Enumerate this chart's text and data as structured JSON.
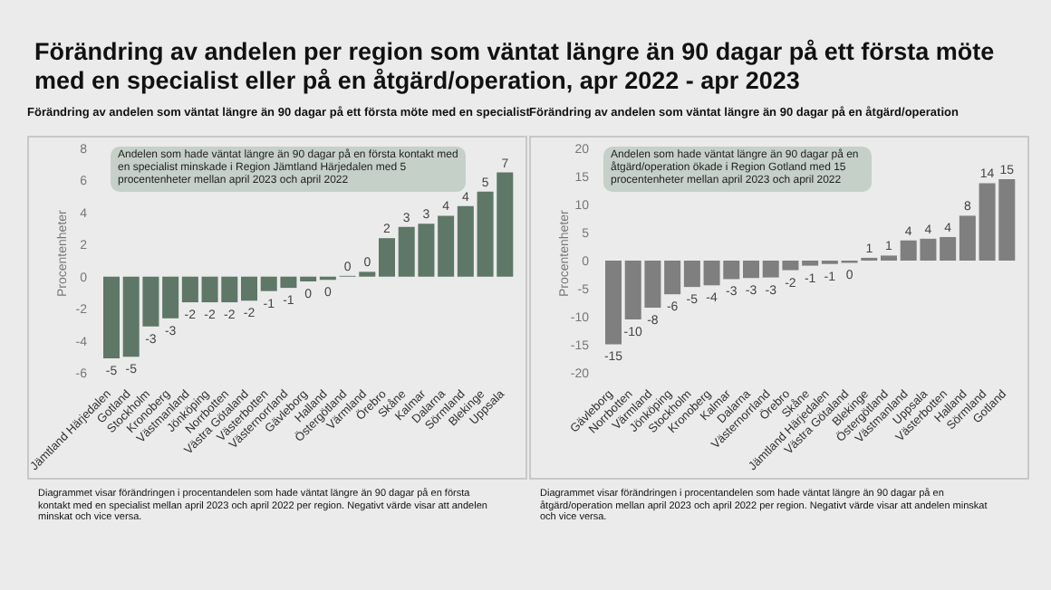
{
  "chart_data": [
    {
      "type": "bar",
      "title": "Förändring av andelen per region som väntat längre än 90 dagar på ett första möte med en specialist eller på en åtgärd/operation, apr 2022 - apr 2023",
      "subtitle": "Förändring av andelen  som väntat längre än 90 dagar på ett första möte med en specialist",
      "ylabel": "Procentenheter",
      "categories": [
        "Jämtland Härjedalen",
        "Gotland",
        "Stockholm",
        "Kronoberg",
        "Västmanland",
        "Jönköping",
        "Norrbotten",
        "Västra Götaland",
        "Västerbotten",
        "Västernorrland",
        "Gävleborg",
        "Halland",
        "Östergötland",
        "Värmland",
        "Örebro",
        "Skåne",
        "Kalmar",
        "Dalarna",
        "Sörmland",
        "Blekinge",
        "Uppsala"
      ],
      "values": [
        -5.1,
        -5.0,
        -3.1,
        -2.6,
        -1.6,
        -1.6,
        -1.6,
        -1.5,
        -0.9,
        -0.7,
        -0.3,
        -0.2,
        0.05,
        0.3,
        2.4,
        3.1,
        3.3,
        3.8,
        4.4,
        5.3,
        6.5
      ],
      "value_labels": [
        "-5",
        "-5",
        "-3",
        "-3",
        "-2",
        "-2",
        "-2",
        "-2",
        "-1",
        "-1",
        "0",
        "0",
        "0",
        "0",
        "2",
        "3",
        "3",
        "4",
        "4",
        "5",
        "7"
      ],
      "color": "#5e7767",
      "ylim": [
        -6,
        8
      ],
      "yticks": [
        -6,
        -4,
        -2,
        0,
        2,
        4,
        6,
        8
      ],
      "grid": false,
      "legend": false,
      "annotations": [
        "Andelen som hade väntat längre än 90 dagar på en första kontakt med en specialist minskade i Region Jämtland Härjedalen med 5 procentenheter mellan april 2023 och april 2022",
        "Diagrammet visar förändringen i procentandelen som hade väntat längre än 90 dagar på en första kontakt med en specialist mellan april 2023 och april 2022 per region. Negativt värde visar att andelen minskat och vice versa."
      ]
    },
    {
      "type": "bar",
      "subtitle": "Förändring av andelen som väntat längre än 90 dagar på en åtgärd/operation",
      "ylabel": "Procentenheter",
      "categories": [
        "Gävleborg",
        "Norrbotten",
        "Värmland",
        "Jönköping",
        "Stockholm",
        "Kronoberg",
        "Kalmar",
        "Dalarna",
        "Västernorrland",
        "Örebro",
        "Skåne",
        "Jämtland Härjedalen",
        "Västra Götaland",
        "Blekinge",
        "Östergötland",
        "Västmanland",
        "Uppsala",
        "Västerbotten",
        "Halland",
        "Sörmland",
        "Gotland"
      ],
      "values": [
        -14.9,
        -10.5,
        -8.4,
        -6.0,
        -4.7,
        -4.4,
        -3.3,
        -3.1,
        -3.0,
        -1.7,
        -0.9,
        -0.6,
        -0.4,
        0.5,
        0.9,
        3.6,
        3.9,
        4.2,
        8.0,
        13.8,
        14.5
      ],
      "value_labels": [
        "-15",
        "-10",
        "-8",
        "-6",
        "-5",
        "-4",
        "-3",
        "-3",
        "-3",
        "-2",
        "-1",
        "-1",
        "0",
        "1",
        "1",
        "4",
        "4",
        "4",
        "8",
        "14",
        "15"
      ],
      "color": "#7f7f7f",
      "ylim": [
        -20,
        20
      ],
      "yticks": [
        -20,
        -15,
        -10,
        -5,
        0,
        5,
        10,
        15,
        20
      ],
      "grid": false,
      "legend": false,
      "annotations": [
        "Andelen som hade väntat längre än 90 dagar på en åtgärd/operation ökade i Region Gotland med 15 procentenheter mellan april 2023 och april 2022",
        "Diagrammet visar förändringen i procentandelen som hade väntat längre än 90 dagar på en åtgärd/operation mellan april 2023 och april 2022 per region. Negativt värde visar att andelen minskat och vice versa."
      ]
    }
  ]
}
